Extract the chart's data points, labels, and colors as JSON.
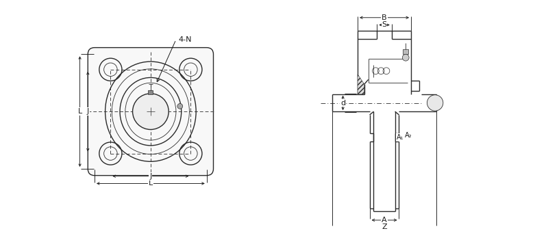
{
  "bg_color": "#ffffff",
  "line_color": "#2a2a2a",
  "dash_color": "#444444",
  "dim_color": "#1a1a1a",
  "fig_width": 8.16,
  "fig_height": 3.38,
  "labels": {
    "four_n": "4-N",
    "L_left": "L",
    "J_left": "J",
    "L_bottom": "L",
    "J_bottom": "J",
    "B": "B",
    "S": "S",
    "d": "d",
    "A1": "A₁",
    "A2": "A₂",
    "A": "A",
    "Z": "Z"
  }
}
